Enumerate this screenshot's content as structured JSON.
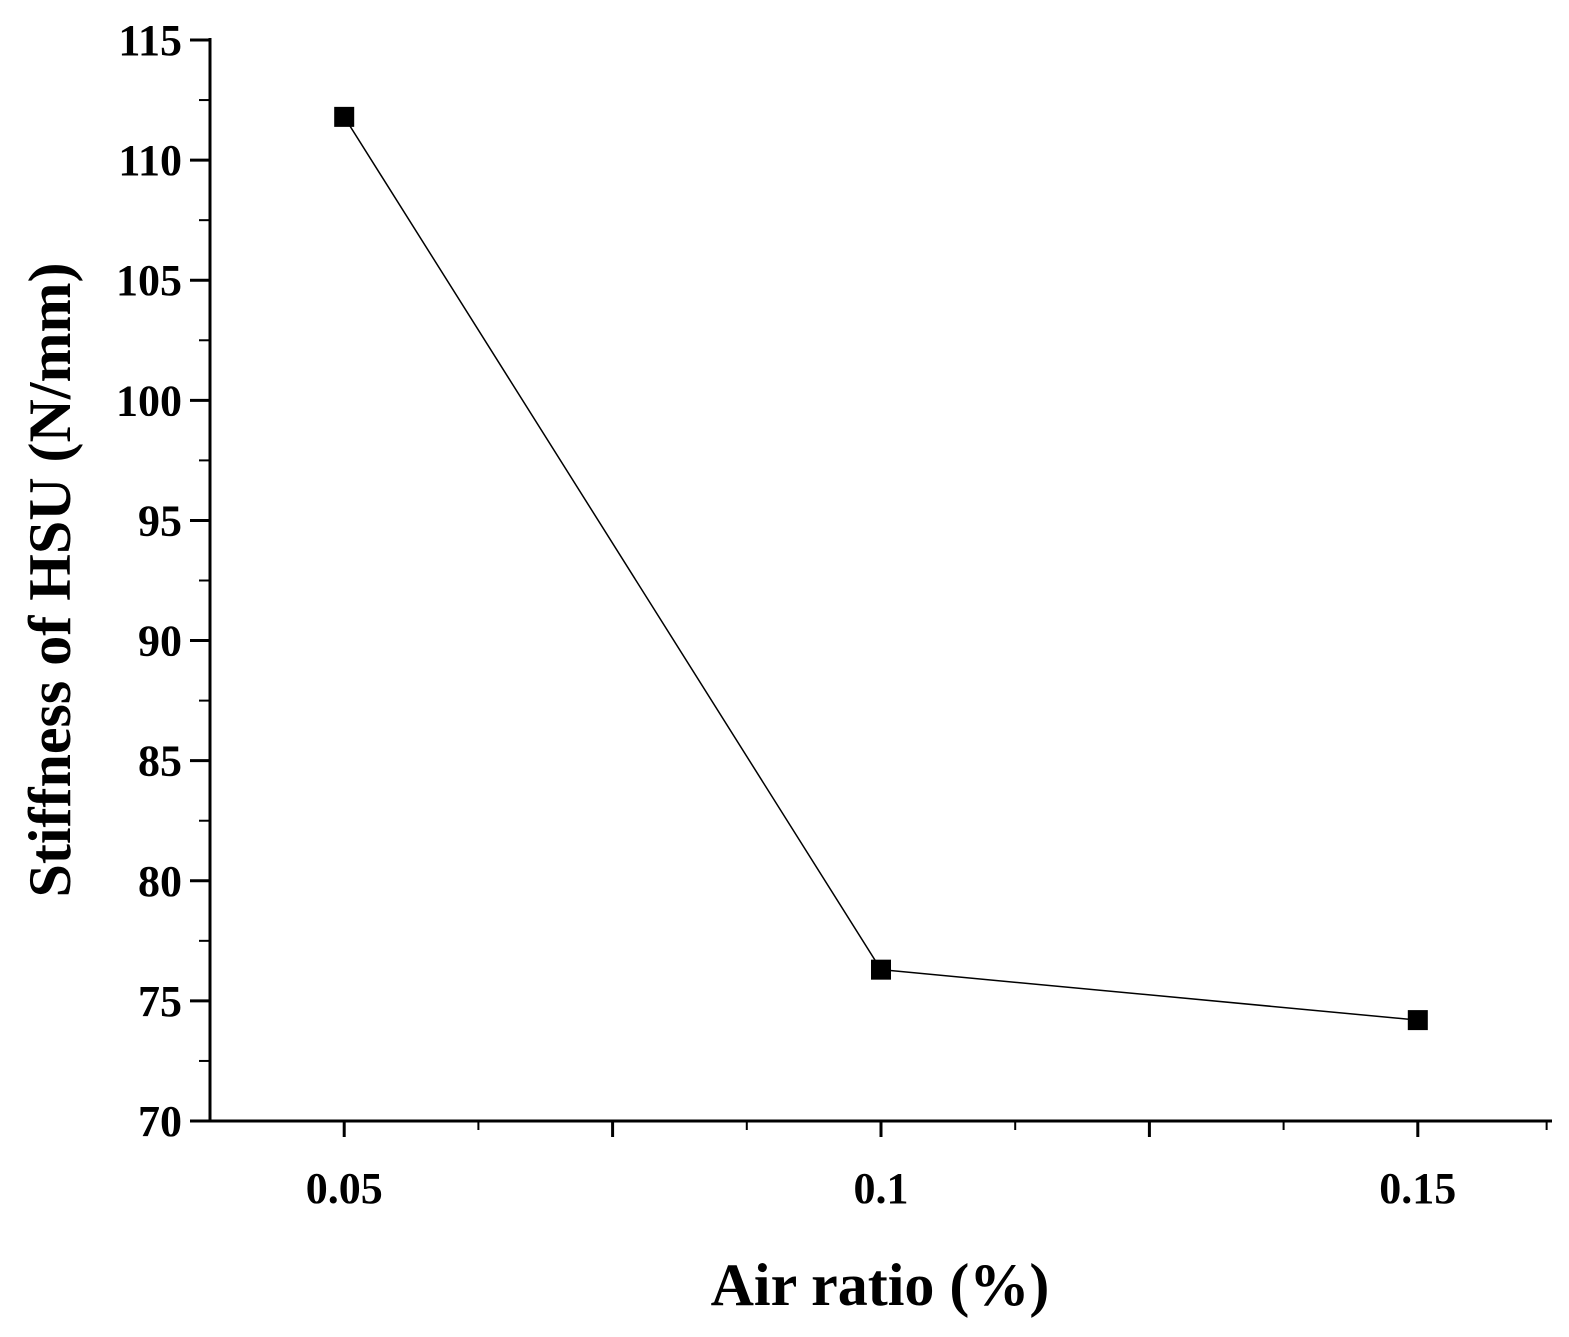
{
  "chart_data": {
    "type": "line",
    "title": "",
    "xlabel": "Air ratio (%)",
    "ylabel": "Stiffness of HSU (N/mm)",
    "xlim": [
      0.0375,
      0.1625
    ],
    "ylim": [
      70,
      115
    ],
    "x_ticks": [
      0.05,
      0.1,
      0.15
    ],
    "x_tick_labels": [
      "0.05",
      "0.1",
      "0.15"
    ],
    "x_minor_ticks": [
      0.075,
      0.125
    ],
    "y_ticks": [
      70,
      75,
      80,
      85,
      90,
      95,
      100,
      105,
      110,
      115
    ],
    "y_tick_labels": [
      "70",
      "75",
      "80",
      "85",
      "90",
      "95",
      "100",
      "105",
      "110",
      "115"
    ],
    "grid": false,
    "series": [
      {
        "x": [
          0.05,
          0.1,
          0.15
        ],
        "y": [
          111.8,
          76.3,
          74.2
        ],
        "marker": "square",
        "color": "#000000"
      }
    ]
  }
}
